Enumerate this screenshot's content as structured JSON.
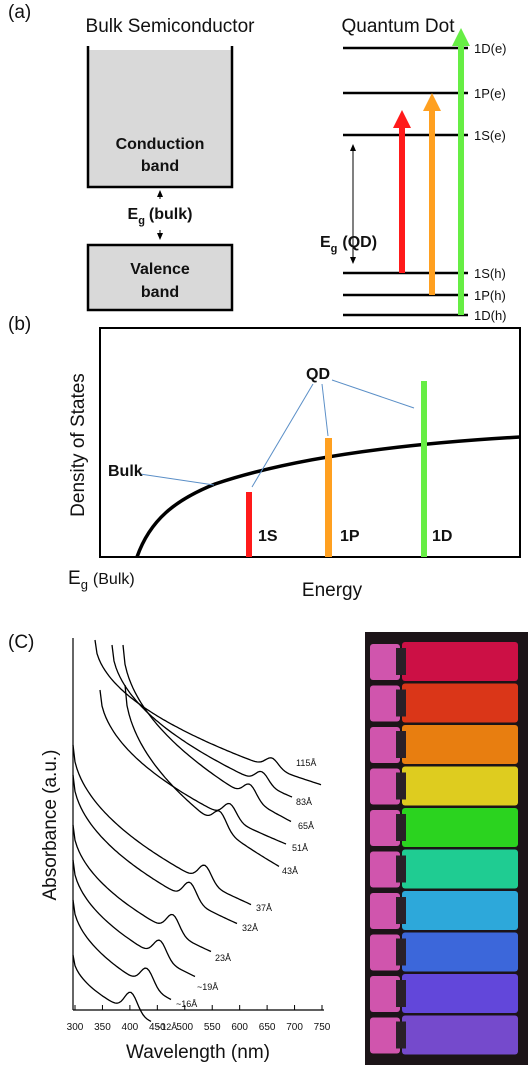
{
  "panel_a": {
    "label": "(a)",
    "bulk": {
      "title": "Bulk Semiconductor",
      "conduction_band": [
        "Conduction",
        "band"
      ],
      "valence_band": [
        "Valence",
        "band"
      ],
      "gap": {
        "symbol": "E",
        "subscript": "g",
        "text": "(bulk)"
      }
    },
    "quantum_dot": {
      "title": "Quantum Dot",
      "levels": [
        "1D(e)",
        "1P(e)",
        "1S(e)",
        "1S(h)",
        "1P(h)",
        "1D(h)"
      ],
      "gap": {
        "symbol": "E",
        "subscript": "g",
        "text": "(QD)"
      }
    }
  },
  "panel_b": {
    "label": "(b)",
    "y_label": "Density of States",
    "x_label": "Energy",
    "bulk_label": "Bulk",
    "qd_label": "QD",
    "peaks": [
      "1S",
      "1P",
      "1D"
    ],
    "gap": {
      "symbol": "E",
      "subscript": "g",
      "text": "(Bulk)"
    }
  },
  "panel_c": {
    "label": "(C)",
    "x_label": "Wavelength (nm)",
    "y_label": "Absorbance (a.u.)",
    "xlim": [
      300,
      750
    ],
    "xticks": [
      300,
      350,
      400,
      450,
      500,
      550,
      600,
      650,
      700,
      750
    ],
    "size_labels": [
      "115Å",
      "83Å",
      "65Å",
      "51Å",
      "43Å",
      "37Å",
      "32Å",
      "23Å",
      "~19Å",
      "~16Å",
      "~12Å"
    ]
  }
}
